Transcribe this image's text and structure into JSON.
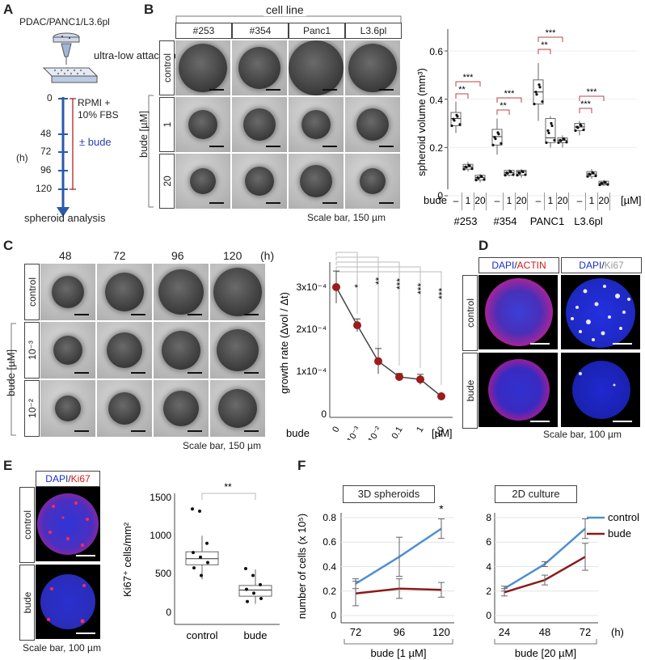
{
  "panels": {
    "A": "A",
    "B": "B",
    "C": "C",
    "D": "D",
    "E": "E",
    "F": "F"
  },
  "panelA": {
    "cell_lines": "PDAC/PANC1/L3.6pl",
    "plate": "ultra-low attachment",
    "medium": "RPMI +\n10% FBS",
    "treatment": "± bude",
    "timepoints": [
      "0",
      "48",
      "72",
      "96",
      "120"
    ],
    "unit": "(h)",
    "end": "spheroid analysis",
    "colors": {
      "treatment": "#2a3fb0",
      "bracket": "#b22222",
      "axis": "#2a5aa8"
    }
  },
  "panelB": {
    "header": "cell line",
    "columns": [
      "#253",
      "#354",
      "Panc1",
      "L3.6pl"
    ],
    "rows": [
      "control",
      "1",
      "20"
    ],
    "row_axis": "bude [µM]",
    "scale": "Scale bar, 150 µm"
  },
  "panelB_chart": {
    "ylabel": "spheroid volume (mm³)",
    "yticks": [
      "0",
      "0.2",
      "0.4",
      "0.6"
    ],
    "bude_label": "bude",
    "dose_labels": [
      "–",
      "1",
      "20"
    ],
    "unit": "[µM]",
    "groups": [
      "#253",
      "#354",
      "PANC1",
      "L3.6pl"
    ],
    "sig": [
      "**",
      "***",
      "**",
      "***",
      "**",
      "***",
      "***",
      "***"
    ]
  },
  "panelC": {
    "times": [
      "48",
      "72",
      "96",
      "120"
    ],
    "time_unit": "(h)",
    "rows": [
      "control",
      "10⁻³",
      "10⁻²"
    ],
    "row_axis": "bude [µM]",
    "scale": "Scale bar, 150 µm"
  },
  "panelC_chart": {
    "ylabel": "growth rate (Δvol / Δt)",
    "yticks": [
      "0",
      "1x10⁻⁴",
      "2x10⁻⁴",
      "3x10⁻⁴"
    ],
    "bude_label": "bude",
    "xticks": [
      "0",
      "10⁻³",
      "10⁻²",
      "0.1",
      "1",
      "10"
    ],
    "unit": "[µM]",
    "sig": [
      "*",
      "**",
      "***",
      "***",
      "***"
    ]
  },
  "panelD": {
    "stain1_a": "DAPI",
    "stain1_sep": "/",
    "stain1_b": "ACTIN",
    "stain2_a": "DAPI",
    "stain2_sep": "/",
    "stain2_b": "Ki67",
    "rows": [
      "control",
      "bude"
    ],
    "scale": "Scale bar, 100 µm"
  },
  "panelE": {
    "stain_a": "DAPI",
    "stain_sep": "/",
    "stain_b": "Ki67",
    "rows": [
      "control",
      "bude"
    ],
    "scale": "Scale bar, 100 µm",
    "ylabel": "Ki67⁺ cells/mm²",
    "yticks": [
      "0",
      "500",
      "1000",
      "1500"
    ],
    "groups": [
      "control",
      "bude"
    ],
    "sig": "**"
  },
  "panelF": {
    "ylabel": "number of cells (x 10⁵)",
    "left_title": "3D spheroids",
    "right_title": "2D culture",
    "left_yticks": [
      "0",
      "0.2",
      "0.4",
      "0.6",
      "0.8"
    ],
    "right_yticks": [
      "0",
      "2",
      "4",
      "6",
      "8"
    ],
    "left_xticks": [
      "72",
      "96",
      "120"
    ],
    "right_xticks": [
      "24",
      "48",
      "72"
    ],
    "time_unit": "(h)",
    "left_bracket": "bude [1 µM]",
    "right_bracket": "bude [20 µM]",
    "sig": "*",
    "legend": [
      "control",
      "bude"
    ],
    "colors": {
      "control": "#4f8fd0",
      "bude": "#8b1a1a"
    }
  },
  "chart_data": [
    {
      "type": "scatter",
      "ylabel": "spheroid volume (mm³)",
      "ylim": [
        -0.03,
        0.62
      ],
      "categories": [
        "#253 –",
        "#253 1",
        "#253 20",
        "#354 –",
        "#354 1",
        "#354 20",
        "PANC1 –",
        "PANC1 1",
        "PANC1 20",
        "L3.6pl –",
        "L3.6pl 1",
        "L3.6pl 20"
      ],
      "box": [
        {
          "q1": 0.29,
          "med": 0.32,
          "q3": 0.345,
          "lo": 0.26,
          "hi": 0.39
        },
        {
          "q1": 0.11,
          "med": 0.12,
          "q3": 0.13,
          "lo": 0.1,
          "hi": 0.14
        },
        {
          "q1": 0.065,
          "med": 0.075,
          "q3": 0.085,
          "lo": 0.055,
          "hi": 0.09
        },
        {
          "q1": 0.21,
          "med": 0.245,
          "q3": 0.275,
          "lo": 0.17,
          "hi": 0.32
        },
        {
          "q1": 0.085,
          "med": 0.095,
          "q3": 0.105,
          "lo": 0.08,
          "hi": 0.11
        },
        {
          "q1": 0.085,
          "med": 0.1,
          "q3": 0.105,
          "lo": 0.075,
          "hi": 0.11
        },
        {
          "q1": 0.38,
          "med": 0.43,
          "q3": 0.48,
          "lo": 0.31,
          "hi": 0.55
        },
        {
          "q1": 0.22,
          "med": 0.24,
          "q3": 0.32,
          "lo": 0.2,
          "hi": 0.33
        },
        {
          "q1": 0.22,
          "med": 0.23,
          "q3": 0.24,
          "lo": 0.2,
          "hi": 0.25
        },
        {
          "q1": 0.27,
          "med": 0.285,
          "q3": 0.3,
          "lo": 0.25,
          "hi": 0.31
        },
        {
          "q1": 0.08,
          "med": 0.09,
          "q3": 0.1,
          "lo": 0.07,
          "hi": 0.11
        },
        {
          "q1": 0.045,
          "med": 0.05,
          "q3": 0.06,
          "lo": 0.04,
          "hi": 0.065
        }
      ]
    },
    {
      "type": "line",
      "ylabel": "growth rate (Δvol / Δt)",
      "categories": [
        "0",
        "10⁻³",
        "10⁻²",
        "0.1",
        "1",
        "10"
      ],
      "values": [
        0.0003,
        0.00021,
        0.000125,
        8.8e-05,
        8.2e-05,
        4.2e-05
      ],
      "errors": [
        3.8e-05,
        1.5e-05,
        3e-05,
        8e-06,
        1.2e-05,
        3e-06
      ],
      "ylim": [
        0,
        0.00035
      ]
    },
    {
      "type": "scatter",
      "ylabel": "Ki67⁺ cells/mm²",
      "categories": [
        "control",
        "bude"
      ],
      "box": [
        {
          "q1": 620,
          "med": 700,
          "q3": 790,
          "lo": 430,
          "hi": 1000
        },
        {
          "q1": 210,
          "med": 290,
          "q3": 350,
          "lo": 110,
          "hi": 560
        }
      ],
      "points": [
        [
          1350,
          1320,
          900,
          780,
          720,
          650,
          580,
          480
        ],
        [
          570,
          480,
          360,
          300,
          250,
          180,
          140
        ]
      ],
      "ylim": [
        -50,
        1550
      ]
    },
    {
      "type": "line",
      "title": "3D spheroids",
      "ylabel": "number of cells (x 10⁵)",
      "x": [
        "72",
        "96",
        "120"
      ],
      "series": [
        {
          "name": "control",
          "values": [
            0.26,
            0.48,
            0.71
          ],
          "errors": [
            0.04,
            0.16,
            0.08
          ]
        },
        {
          "name": "bude",
          "values": [
            0.18,
            0.22,
            0.21
          ],
          "errors": [
            0.1,
            0.08,
            0.06
          ]
        }
      ],
      "ylim": [
        0,
        0.8
      ]
    },
    {
      "type": "line",
      "title": "2D culture",
      "x": [
        "24",
        "48",
        "72"
      ],
      "series": [
        {
          "name": "control",
          "values": [
            2.2,
            4.2,
            7.1
          ],
          "errors": [
            0.2,
            0.2,
            0.8
          ]
        },
        {
          "name": "bude",
          "values": [
            1.9,
            2.9,
            4.8
          ],
          "errors": [
            0.3,
            0.4,
            1.1
          ]
        }
      ],
      "ylim": [
        0,
        8
      ]
    }
  ]
}
